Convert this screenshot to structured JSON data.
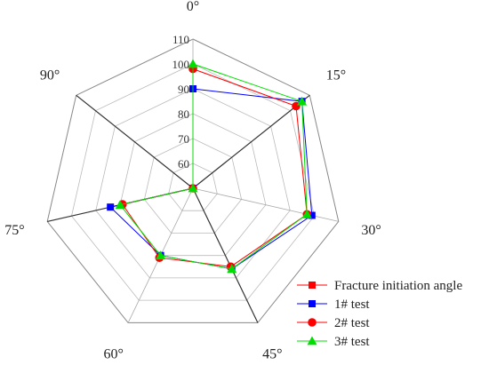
{
  "chart_data": {
    "type": "radar",
    "axes": [
      "0°",
      "15°",
      "30°",
      "45°",
      "60°",
      "75°",
      "90°"
    ],
    "radial_ticks": [
      60,
      70,
      80,
      90,
      100,
      110
    ],
    "rlim": [
      50,
      110
    ],
    "grid": true,
    "legend_position": "bottom-right",
    "series": [
      {
        "name": "Fracture initiation angle",
        "color": "#ff0000",
        "marker": "square",
        "values": [
          50,
          50,
          50,
          50,
          50,
          50,
          50
        ]
      },
      {
        "name": "1# test",
        "color": "#0000ff",
        "marker": "square",
        "values": [
          90,
          106,
          99,
          86,
          80,
          84,
          50
        ]
      },
      {
        "name": "2# test",
        "color": "#ff0000",
        "marker": "circle",
        "values": [
          98,
          103,
          97,
          85,
          81,
          79,
          50
        ]
      },
      {
        "name": "3# test",
        "color": "#00dd00",
        "marker": "triangle",
        "values": [
          100,
          106,
          97,
          86,
          80,
          80,
          50
        ]
      }
    ]
  }
}
